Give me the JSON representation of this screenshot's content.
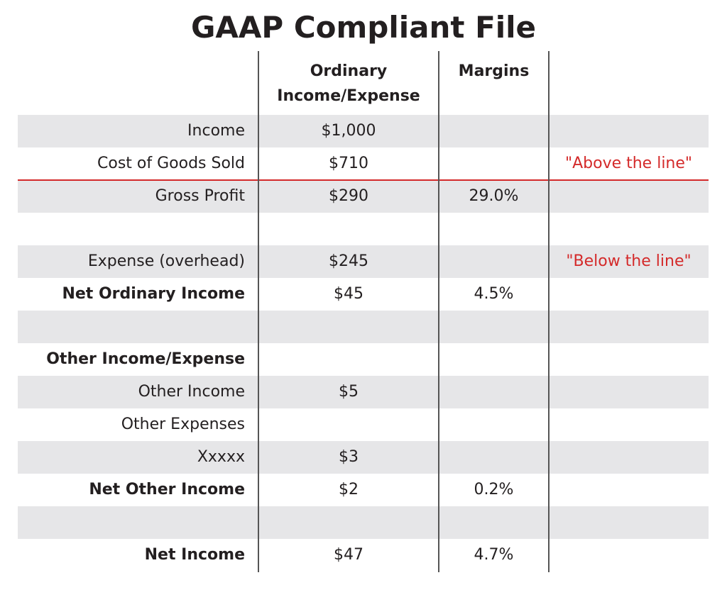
{
  "title": "GAAP Compliant File",
  "headers": {
    "col2_line1": "Ordinary",
    "col2_line2": "Income/Expense",
    "col3": "Margins"
  },
  "accent_color": "#d42a2a",
  "rows": [
    {
      "label": "Income",
      "amount": "$1,000",
      "margin": "",
      "note": "",
      "bold": false
    },
    {
      "label": "Cost of Goods Sold",
      "amount": "$710",
      "margin": "",
      "note": "\"Above the line\"",
      "bold": false
    },
    {
      "label": "Gross Profit",
      "amount": "$290",
      "margin": "29.0%",
      "note": "",
      "bold": false
    },
    {
      "label": "",
      "amount": "",
      "margin": "",
      "note": "",
      "bold": false
    },
    {
      "label": "Expense (overhead)",
      "amount": "$245",
      "margin": "",
      "note": "\"Below the line\"",
      "bold": false
    },
    {
      "label": "Net Ordinary Income",
      "amount": "$45",
      "margin": "4.5%",
      "note": "",
      "bold": true
    },
    {
      "label": "",
      "amount": "",
      "margin": "",
      "note": "",
      "bold": false
    },
    {
      "label": "Other Income/Expense",
      "amount": "",
      "margin": "",
      "note": "",
      "bold": true
    },
    {
      "label": "Other Income",
      "amount": "$5",
      "margin": "",
      "note": "",
      "bold": false
    },
    {
      "label": "Other Expenses",
      "amount": "",
      "margin": "",
      "note": "",
      "bold": false
    },
    {
      "label": "Xxxxx",
      "amount": "$3",
      "margin": "",
      "note": "",
      "bold": false
    },
    {
      "label": "Net Other Income",
      "amount": "$2",
      "margin": "0.2%",
      "note": "",
      "bold": true
    },
    {
      "label": "",
      "amount": "",
      "margin": "",
      "note": "",
      "bold": false
    },
    {
      "label": "Net Income",
      "amount": "$47",
      "margin": "4.7%",
      "note": "",
      "bold": true
    }
  ]
}
